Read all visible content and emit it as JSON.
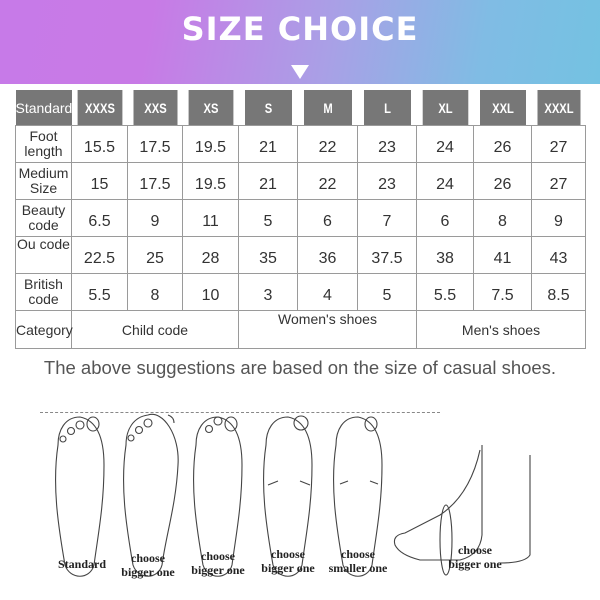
{
  "banner": {
    "title": "SIZE CHOICE",
    "arrow_icon": "triangle-down-icon"
  },
  "table": {
    "header": [
      "Standard",
      "XXXS",
      "XXS",
      "XS",
      "S",
      "M",
      "L",
      "XL",
      "XXL",
      "XXXL"
    ],
    "rows": [
      {
        "label": [
          "Foot",
          "length"
        ],
        "values": [
          "15.5",
          "17.5",
          "19.5",
          "21",
          "22",
          "23",
          "24",
          "26",
          "27"
        ]
      },
      {
        "label": [
          "Medium",
          "Size"
        ],
        "values": [
          "15",
          "17.5",
          "19.5",
          "21",
          "22",
          "23",
          "24",
          "26",
          "27"
        ]
      },
      {
        "label": [
          "Beauty",
          "code"
        ],
        "values": [
          "6.5",
          "9",
          "11",
          "5",
          "6",
          "7",
          "6",
          "8",
          "9"
        ]
      },
      {
        "label": [
          "Ou code",
          ""
        ],
        "values": [
          "22.5",
          "25",
          "28",
          "35",
          "36",
          "37.5",
          "38",
          "41",
          "43"
        ]
      },
      {
        "label": [
          "British",
          "code"
        ],
        "values": [
          "5.5",
          "8",
          "10",
          "3",
          "4",
          "5",
          "5.5",
          "7.5",
          "8.5"
        ]
      }
    ],
    "category": {
      "label": "Category",
      "groups": [
        "Child code",
        "Women's shoes",
        "Men's shoes"
      ]
    }
  },
  "note": "The above suggestions are based on the size of casual shoes.",
  "captions": [
    [
      "Standard",
      ""
    ],
    [
      "choose",
      "bigger one"
    ],
    [
      "choose",
      "bigger one"
    ],
    [
      "choose",
      "bigger one"
    ],
    [
      "choose",
      "smaller one"
    ],
    [
      "choose",
      "bigger one"
    ]
  ]
}
